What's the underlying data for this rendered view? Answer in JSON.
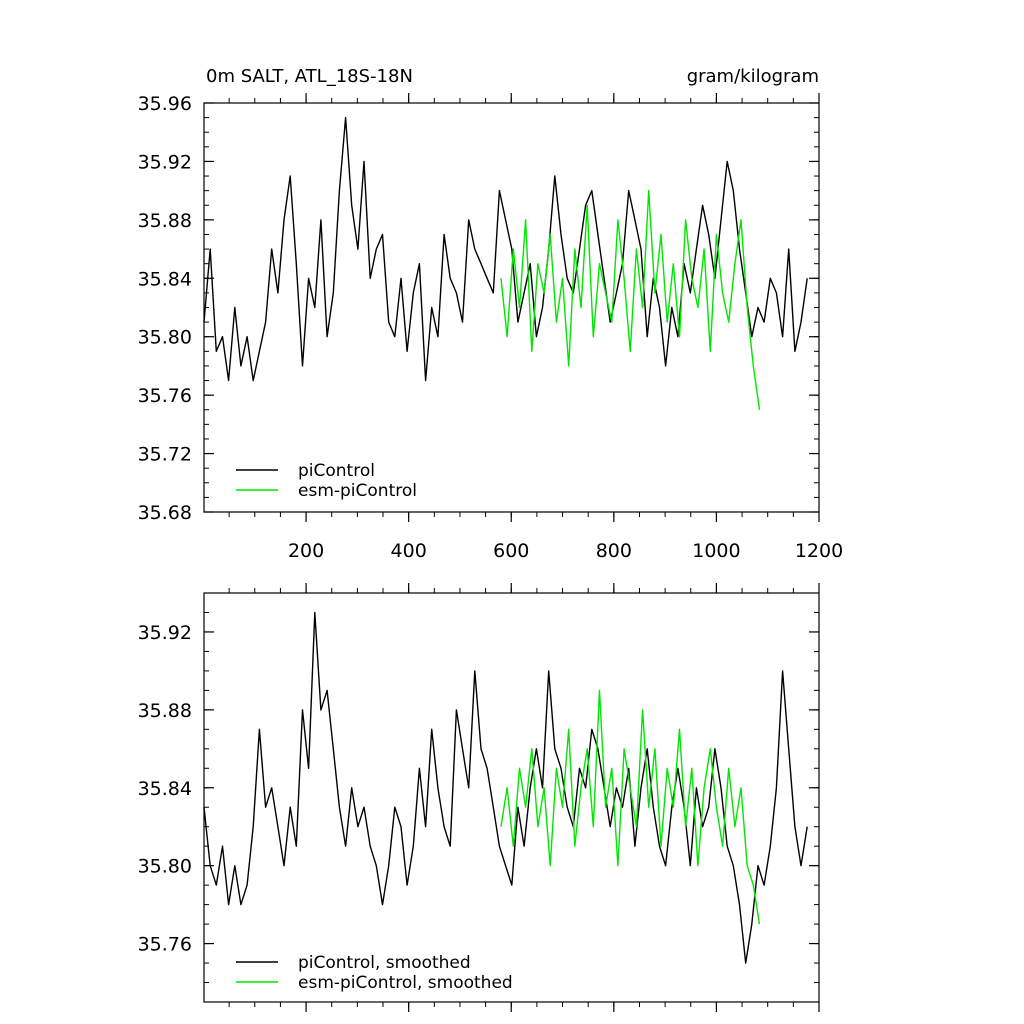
{
  "chart_data": [
    {
      "type": "line",
      "title": "0m SALT, ATL_18S-18N",
      "units": "gram/kilogram",
      "xlim": [
        1,
        1200
      ],
      "ylim": [
        35.68,
        35.96
      ],
      "x_ticks": [
        200,
        400,
        600,
        800,
        1000,
        1200
      ],
      "y_ticks": [
        35.68,
        35.72,
        35.76,
        35.8,
        35.84,
        35.88,
        35.92,
        35.96
      ],
      "y_tick_labels": [
        "35.68",
        "35.72",
        "35.76",
        "35.80",
        "35.84",
        "35.88",
        "35.92",
        "35.96"
      ],
      "legend_position": "bottom-left",
      "series": [
        {
          "name": "piControl",
          "color": "#000000",
          "x_start": 1,
          "x_step": 12,
          "values": [
            35.81,
            35.86,
            35.79,
            35.8,
            35.77,
            35.82,
            35.78,
            35.8,
            35.77,
            35.79,
            35.81,
            35.86,
            35.83,
            35.88,
            35.91,
            35.85,
            35.78,
            35.84,
            35.82,
            35.88,
            35.8,
            35.83,
            35.9,
            35.95,
            35.89,
            35.86,
            35.92,
            35.84,
            35.86,
            35.87,
            35.81,
            35.8,
            35.84,
            35.79,
            35.83,
            35.85,
            35.77,
            35.82,
            35.8,
            35.87,
            35.84,
            35.83,
            35.81,
            35.88,
            35.86,
            35.85,
            35.84,
            35.83,
            35.9,
            35.88,
            35.86,
            35.81,
            35.83,
            35.85,
            35.8,
            35.82,
            35.86,
            35.91,
            35.87,
            35.84,
            35.83,
            35.86,
            35.89,
            35.9,
            35.87,
            35.84,
            35.81,
            35.83,
            35.85,
            35.9,
            35.88,
            35.86,
            35.8,
            35.84,
            35.82,
            35.78,
            35.82,
            35.8,
            35.85,
            35.83,
            35.86,
            35.89,
            35.87,
            35.84,
            35.88,
            35.92,
            35.9,
            35.86,
            35.83,
            35.8,
            35.82,
            35.81,
            35.84,
            35.83,
            35.8,
            35.86,
            35.79,
            35.81,
            35.84
          ],
          "stroke_width": 1.4
        },
        {
          "name": "esm-piControl",
          "color": "#00e600",
          "x_start": 580,
          "x_step": 12,
          "values": [
            35.84,
            35.8,
            35.86,
            35.82,
            35.88,
            35.79,
            35.85,
            35.83,
            35.87,
            35.81,
            35.84,
            35.78,
            35.86,
            35.82,
            35.89,
            35.8,
            35.85,
            35.83,
            35.81,
            35.88,
            35.84,
            35.79,
            35.86,
            35.82,
            35.9,
            35.83,
            35.87,
            35.81,
            35.85,
            35.8,
            35.88,
            35.84,
            35.82,
            35.86,
            35.79,
            35.87,
            35.83,
            35.81,
            35.85,
            35.88,
            35.82,
            35.78,
            35.75
          ],
          "stroke_width": 1.4
        }
      ]
    },
    {
      "type": "line",
      "xlim": [
        1,
        1200
      ],
      "ylim": [
        35.73,
        35.94
      ],
      "x_ticks": [
        200,
        400,
        600,
        800,
        1000,
        1200
      ],
      "y_ticks": [
        35.76,
        35.8,
        35.84,
        35.88,
        35.92
      ],
      "y_tick_labels": [
        "35.76",
        "35.80",
        "35.84",
        "35.88",
        "35.92"
      ],
      "legend_position": "bottom-left",
      "series": [
        {
          "name": "piControl, smoothed",
          "color": "#000000",
          "x_start": 1,
          "x_step": 12,
          "values": [
            35.83,
            35.8,
            35.79,
            35.81,
            35.78,
            35.8,
            35.78,
            35.79,
            35.82,
            35.87,
            35.83,
            35.84,
            35.82,
            35.8,
            35.83,
            35.81,
            35.88,
            35.85,
            35.93,
            35.88,
            35.89,
            35.86,
            35.83,
            35.81,
            35.84,
            35.82,
            35.83,
            35.81,
            35.8,
            35.78,
            35.8,
            35.83,
            35.82,
            35.79,
            35.81,
            35.85,
            35.82,
            35.87,
            35.84,
            35.82,
            35.81,
            35.88,
            35.86,
            35.84,
            35.9,
            35.86,
            35.85,
            35.83,
            35.81,
            35.8,
            35.79,
            35.83,
            35.81,
            35.84,
            35.86,
            35.84,
            35.9,
            35.86,
            35.85,
            35.83,
            35.82,
            35.85,
            35.84,
            35.87,
            35.86,
            35.84,
            35.82,
            35.84,
            35.83,
            35.85,
            35.81,
            35.84,
            35.86,
            35.83,
            35.81,
            35.8,
            35.83,
            35.85,
            35.83,
            35.8,
            35.84,
            35.82,
            35.83,
            35.86,
            35.84,
            35.81,
            35.8,
            35.78,
            35.75,
            35.77,
            35.8,
            35.79,
            35.81,
            35.84,
            35.9,
            35.86,
            35.82,
            35.8,
            35.82
          ],
          "stroke_width": 1.4
        },
        {
          "name": "esm-piControl, smoothed",
          "color": "#00e600",
          "x_start": 580,
          "x_step": 12,
          "values": [
            35.82,
            35.84,
            35.81,
            35.85,
            35.83,
            35.86,
            35.82,
            35.84,
            35.8,
            35.85,
            35.83,
            35.87,
            35.81,
            35.84,
            35.86,
            35.82,
            35.89,
            35.83,
            35.85,
            35.8,
            35.86,
            35.84,
            35.82,
            35.88,
            35.83,
            35.86,
            35.81,
            35.85,
            35.83,
            35.87,
            35.82,
            35.85,
            35.8,
            35.84,
            35.86,
            35.83,
            35.81,
            35.85,
            35.82,
            35.84,
            35.8,
            35.79,
            35.77
          ],
          "stroke_width": 1.4
        }
      ]
    }
  ]
}
